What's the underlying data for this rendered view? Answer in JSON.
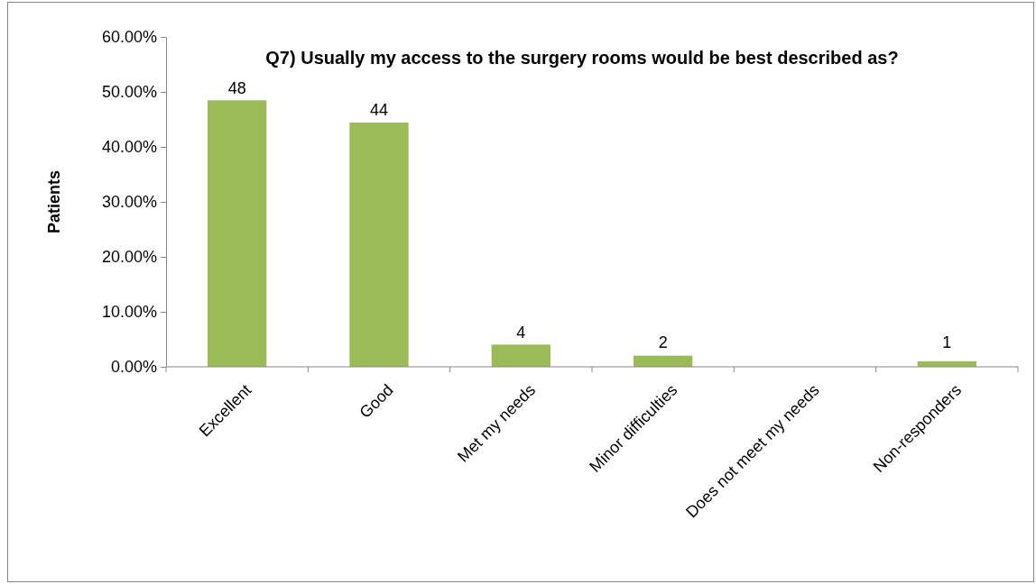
{
  "chart_data": {
    "type": "bar",
    "title": "Q7) Usually my access to the surgery rooms would be best described as?",
    "ylabel": "Patients",
    "categories": [
      "Excellent",
      "Good",
      "Met my needs",
      "Minor difficulties",
      "Does not meet my needs",
      "Non-responders"
    ],
    "values": [
      48.48,
      44.44,
      4.04,
      2.02,
      0,
      1.01
    ],
    "value_labels": [
      "48",
      "44",
      "4",
      "2",
      null,
      "1"
    ],
    "color": "#9bbb59",
    "ylim": [
      0,
      60
    ],
    "yticks": [
      {
        "value": 0,
        "label": "0.00%"
      },
      {
        "value": 10,
        "label": "10.00%"
      },
      {
        "value": 20,
        "label": "20.00%"
      },
      {
        "value": 30,
        "label": "30.00%"
      },
      {
        "value": 40,
        "label": "40.00%"
      },
      {
        "value": 50,
        "label": "50.00%"
      },
      {
        "value": 60,
        "label": "60.00%"
      }
    ],
    "grid": false
  }
}
